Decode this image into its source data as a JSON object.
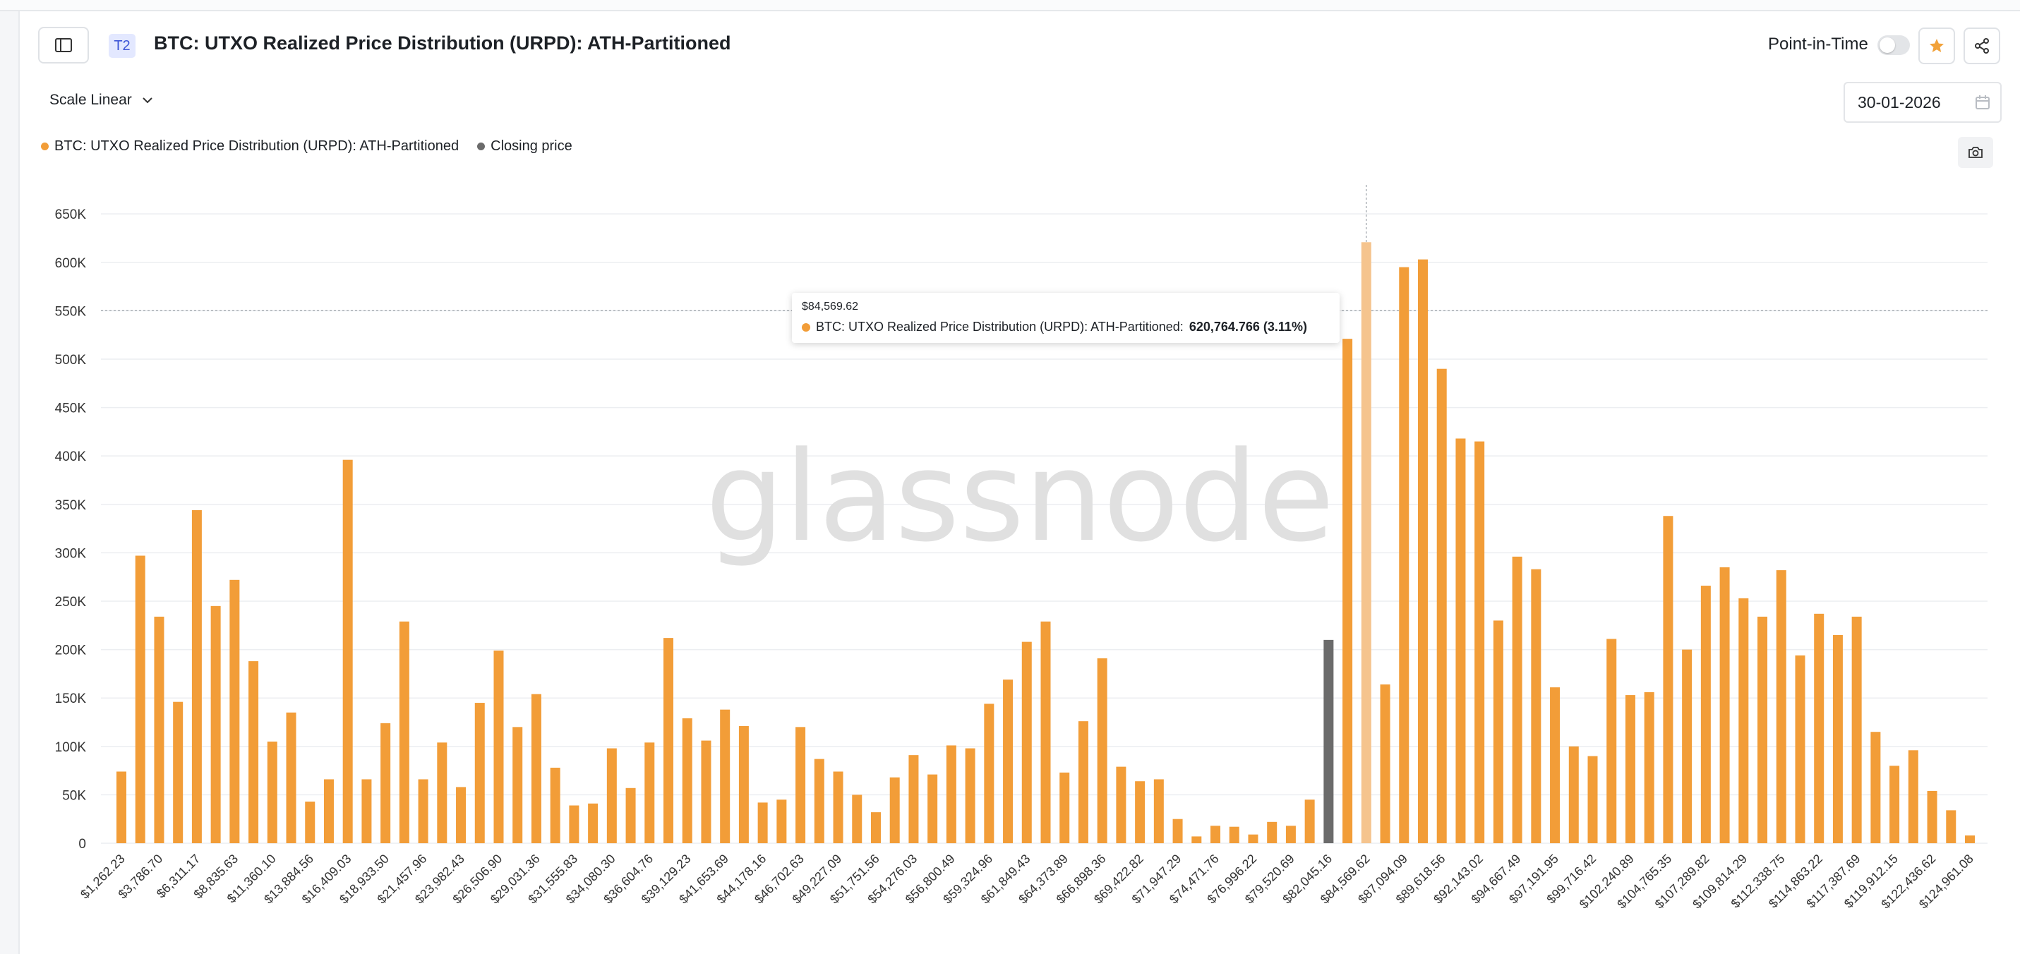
{
  "header": {
    "tier_badge": "T2",
    "title": "BTC: UTXO Realized Price Distribution (URPD): ATH-Partitioned",
    "point_in_time_label": "Point-in-Time"
  },
  "controls": {
    "scale_label": "Scale Linear",
    "date_value": "30-01-2026"
  },
  "legend": [
    {
      "label": "BTC: UTXO Realized Price Distribution (URPD): ATH-Partitioned",
      "color": "#f29d38"
    },
    {
      "label": "Closing price",
      "color": "#6b6b6b"
    }
  ],
  "watermark": "glassnode",
  "tooltip": {
    "date": "$84,569.62",
    "series": "BTC: UTXO Realized Price Distribution (URPD): ATH-Partitioned:",
    "value": "620,764.766 (3.11%)"
  },
  "colors": {
    "bar": "#f29d38",
    "bar_highlight": "#f5c48e",
    "closing_bar": "#6b6b6b",
    "grid": "#eceef1",
    "axis_text": "#333333"
  },
  "chart_data": {
    "type": "bar",
    "ylim": [
      0,
      680000
    ],
    "yticks": [
      0,
      50000,
      100000,
      150000,
      200000,
      250000,
      300000,
      350000,
      400000,
      450000,
      500000,
      550000,
      600000,
      650000
    ],
    "ytick_labels": [
      "0",
      "50K",
      "100K",
      "150K",
      "200K",
      "250K",
      "300K",
      "350K",
      "400K",
      "450K",
      "500K",
      "550K",
      "600K",
      "650K"
    ],
    "xtick_labels": [
      "$1,262.23",
      "$3,786.70",
      "$6,311.17",
      "$8,835.63",
      "$11,360.10",
      "$13,884.56",
      "$16,409.03",
      "$18,933.50",
      "$21,457.96",
      "$23,982.43",
      "$26,506.90",
      "$29,031.36",
      "$31,555.83",
      "$34,080.30",
      "$36,604.76",
      "$39,129.23",
      "$41,653.69",
      "$44,178.16",
      "$46,702.63",
      "$49,227.09",
      "$51,751.56",
      "$54,276.03",
      "$56,800.49",
      "$59,324.96",
      "$61,849.43",
      "$64,373.89",
      "$66,898.36",
      "$69,422.82",
      "$71,947.29",
      "$74,471.76",
      "$76,996.22",
      "$79,520.69",
      "$82,045.16",
      "$84,569.62",
      "$87,094.09",
      "$89,618.56",
      "$92,143.02",
      "$94,667.49",
      "$97,191.95",
      "$99,716.42",
      "$102,240.89",
      "$104,765.35",
      "$107,289.82",
      "$109,814.29",
      "$112,338.75",
      "$114,863.22",
      "$117,387.69",
      "$119,912.15",
      "$122,436.62",
      "$124,961.08"
    ],
    "values": [
      74000,
      297000,
      234000,
      146000,
      344000,
      245000,
      272000,
      188000,
      105000,
      135000,
      43000,
      66000,
      396000,
      66000,
      124000,
      229000,
      66000,
      104000,
      58000,
      145000,
      199000,
      120000,
      154000,
      78000,
      39000,
      41000,
      98000,
      57000,
      104000,
      212000,
      129000,
      106000,
      138000,
      121000,
      42000,
      45000,
      120000,
      87000,
      74000,
      50000,
      32000,
      68000,
      91000,
      71000,
      101000,
      98000,
      144000,
      169000,
      208000,
      229000,
      73000,
      126000,
      191000,
      79000,
      64000,
      66000,
      25000,
      7000,
      18000,
      17000,
      9000,
      22000,
      18000,
      45000,
      210000,
      521000,
      620764.766,
      164000,
      595000,
      603000,
      490000,
      418000,
      415000,
      230000,
      296000,
      283000,
      161000,
      100000,
      90000,
      211000,
      153000,
      156000,
      338000,
      200000,
      266000,
      285000,
      253000,
      234000,
      282000,
      194000,
      237000,
      215000,
      234000,
      115000,
      80000,
      96000,
      54000,
      34000,
      8000
    ],
    "closing_index": 64,
    "highlight_index": 66,
    "reference_line": 550000,
    "grid": true,
    "legend_position": "top-left"
  }
}
